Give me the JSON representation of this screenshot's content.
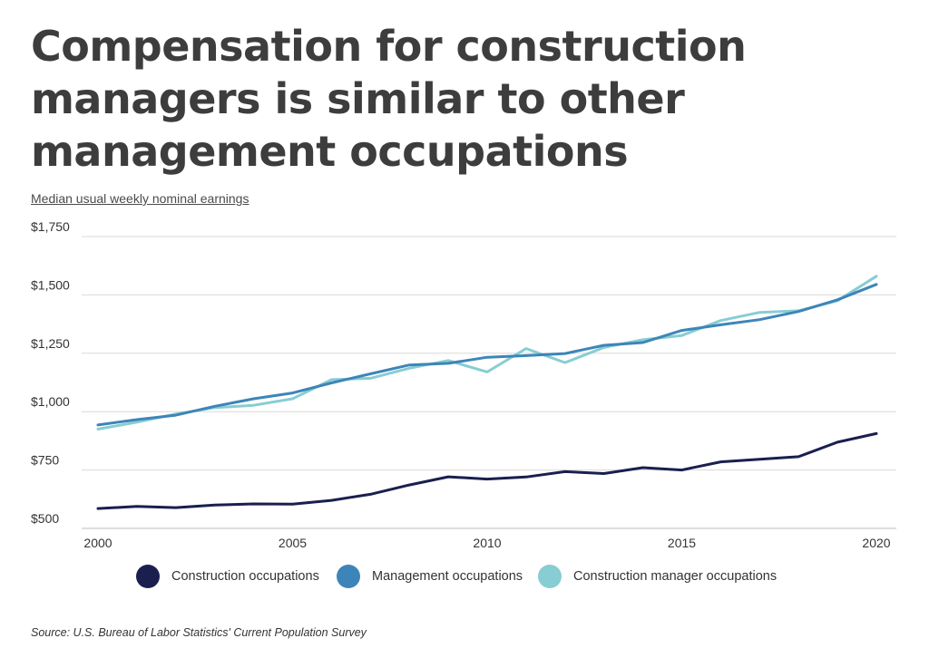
{
  "title": "Compensation for construction managers is similar to other management occupations",
  "source": "Source:  U.S. Bureau of Labor Statistics' Current Population Survey",
  "chart_data": {
    "type": "line",
    "title": "Compensation for construction managers is similar to other management occupations",
    "ylabel": "Median usual weekly nominal earnings",
    "xlabel": "",
    "x": [
      2000,
      2001,
      2002,
      2003,
      2004,
      2005,
      2006,
      2007,
      2008,
      2009,
      2010,
      2011,
      2012,
      2013,
      2014,
      2015,
      2016,
      2017,
      2018,
      2019,
      2020
    ],
    "xlim": [
      2000,
      2020
    ],
    "ylim": [
      500,
      1750
    ],
    "x_ticks": [
      2000,
      2005,
      2010,
      2015,
      2020
    ],
    "x_tick_labels": [
      "2000",
      "2005",
      "2010",
      "2015",
      "2020"
    ],
    "y_ticks": [
      500,
      750,
      1000,
      1250,
      1500,
      1750
    ],
    "y_tick_labels": [
      "$500",
      "$750",
      "$1,000",
      "$1,250",
      "$1,500",
      "$1,750"
    ],
    "grid": "horizontal",
    "legend_position": "bottom",
    "series": [
      {
        "name": "Construction occupations",
        "color": "#1a1f4f",
        "values": [
          585,
          594,
          589,
          600,
          605,
          604,
          620,
          646,
          686,
          721,
          711,
          720,
          743,
          735,
          760,
          750,
          785,
          796,
          807,
          869,
          906
        ]
      },
      {
        "name": "Management occupations",
        "color": "#3d85b8",
        "values": [
          943,
          966,
          985,
          1023,
          1055,
          1080,
          1123,
          1162,
          1200,
          1207,
          1233,
          1240,
          1249,
          1284,
          1296,
          1348,
          1372,
          1394,
          1429,
          1479,
          1545
        ]
      },
      {
        "name": "Construction manager occupations",
        "color": "#87cdd3",
        "values": [
          925,
          955,
          990,
          1017,
          1027,
          1055,
          1137,
          1143,
          1186,
          1219,
          1170,
          1270,
          1210,
          1275,
          1308,
          1326,
          1390,
          1425,
          1432,
          1475,
          1580
        ]
      }
    ]
  }
}
